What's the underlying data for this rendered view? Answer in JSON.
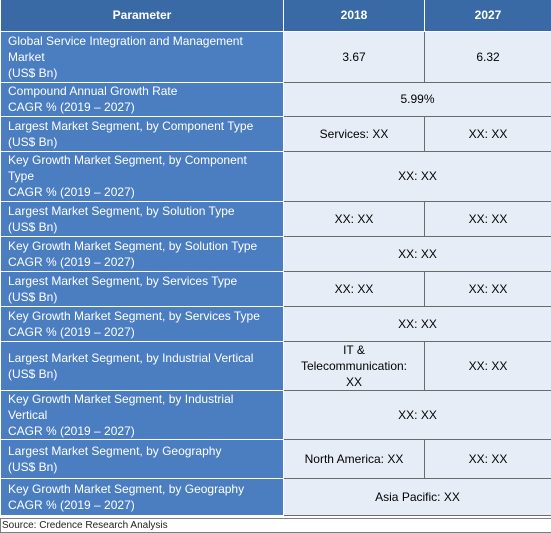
{
  "header": {
    "parameter": "Parameter",
    "col_2018": "2018",
    "col_2027": "2027"
  },
  "rows": [
    {
      "param_lines": [
        "Global Service Integration and Management",
        "Market",
        "(US$ Bn)"
      ],
      "v2018": "3.67",
      "v2027": "6.32"
    },
    {
      "param_lines": [
        "Compound Annual Growth Rate",
        "CAGR % (2019 – 2027)"
      ],
      "merged": "5.99%"
    },
    {
      "param_lines": [
        "Largest Market Segment, by Component Type",
        "(US$ Bn)"
      ],
      "v2018": "Services: XX",
      "v2027": "XX: XX"
    },
    {
      "param_lines": [
        "Key Growth Market Segment, by Component",
        "Type",
        "CAGR % (2019 – 2027)"
      ],
      "merged": "XX: XX"
    },
    {
      "param_lines": [
        "Largest Market Segment, by Solution Type",
        "(US$ Bn)"
      ],
      "v2018": "XX: XX",
      "v2027": "XX: XX"
    },
    {
      "param_lines": [
        "Key Growth Market Segment, by Solution Type",
        "CAGR % (2019 – 2027)"
      ],
      "merged": "XX: XX"
    },
    {
      "param_lines": [
        "Largest Market Segment, by Services Type",
        "(US$ Bn)"
      ],
      "v2018": "XX: XX",
      "v2027": "XX: XX"
    },
    {
      "param_lines": [
        "Key Growth Market Segment, by Services Type",
        "CAGR % (2019 – 2027)"
      ],
      "merged": "XX: XX"
    },
    {
      "param_lines": [
        "Largest Market Segment, by Industrial Vertical",
        "(US$ Bn)"
      ],
      "v2018_lines": [
        "IT &",
        "Telecommunication:",
        "XX"
      ],
      "v2027": "XX: XX"
    },
    {
      "param_lines": [
        "Key Growth Market Segment, by Industrial",
        "Vertical",
        "CAGR % (2019 – 2027)"
      ],
      "merged": "XX: XX"
    },
    {
      "param_lines": [
        "Largest Market Segment, by Geography",
        "(US$ Bn)"
      ],
      "v2018": "North America: XX",
      "v2027": "XX: XX"
    },
    {
      "param_lines": [
        "Key Growth Market Segment, by Geography",
        "CAGR % (2019 – 2027)"
      ],
      "merged": "Asia Pacific: XX"
    }
  ],
  "source": "Source: Credence Research Analysis"
}
